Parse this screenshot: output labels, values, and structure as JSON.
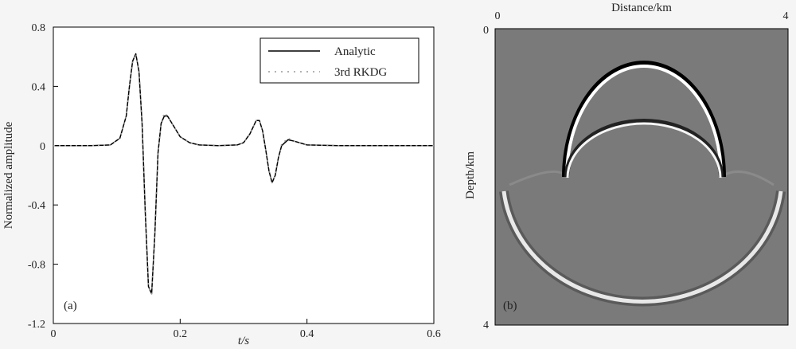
{
  "chart_data": [
    {
      "panel": "(a)",
      "type": "line",
      "xlabel": "t/s",
      "ylabel": "Normalized amplitude",
      "xlim": [
        0,
        0.6
      ],
      "ylim": [
        -1.2,
        0.8
      ],
      "xticks": [
        0,
        0.2,
        0.4,
        0.6
      ],
      "xtick_labels": [
        "0",
        "0.2",
        "0.4",
        "0.6"
      ],
      "yticks": [
        0.8,
        0.4,
        0,
        -0.4,
        -0.8,
        -1.2
      ],
      "ytick_labels": [
        "0.8",
        "0.4",
        "0",
        "-0.4",
        "-0.8",
        "-1.2"
      ],
      "legend": "top-right",
      "grid": false,
      "x": [
        0,
        0.06,
        0.09,
        0.105,
        0.115,
        0.12,
        0.125,
        0.13,
        0.135,
        0.14,
        0.145,
        0.15,
        0.155,
        0.16,
        0.165,
        0.17,
        0.175,
        0.18,
        0.19,
        0.2,
        0.215,
        0.23,
        0.26,
        0.29,
        0.3,
        0.31,
        0.32,
        0.325,
        0.33,
        0.335,
        0.34,
        0.345,
        0.35,
        0.355,
        0.36,
        0.37,
        0.38,
        0.4,
        0.45,
        0.6
      ],
      "series": [
        {
          "name": "Analytic",
          "color": "#000000",
          "style": "solid",
          "values": [
            0,
            0,
            0.005,
            0.05,
            0.2,
            0.4,
            0.57,
            0.62,
            0.5,
            0.15,
            -0.45,
            -0.95,
            -1.0,
            -0.6,
            -0.05,
            0.15,
            0.2,
            0.2,
            0.13,
            0.06,
            0.02,
            0.005,
            0,
            0.005,
            0.02,
            0.08,
            0.17,
            0.17,
            0.1,
            -0.03,
            -0.17,
            -0.25,
            -0.2,
            -0.08,
            0,
            0.04,
            0.03,
            0.005,
            0,
            0
          ]
        },
        {
          "name": "3rd RKDG",
          "color": "#999999",
          "style": "dotted",
          "values": [
            0,
            0,
            0.005,
            0.05,
            0.2,
            0.4,
            0.57,
            0.62,
            0.5,
            0.15,
            -0.45,
            -0.95,
            -1.0,
            -0.6,
            -0.05,
            0.15,
            0.22,
            0.2,
            0.13,
            0.06,
            0.02,
            0.005,
            0,
            0.005,
            0.02,
            0.08,
            0.17,
            0.17,
            0.1,
            -0.03,
            -0.17,
            -0.25,
            -0.2,
            -0.08,
            0.01,
            0.05,
            0.03,
            0.005,
            0,
            0
          ]
        }
      ]
    },
    {
      "panel": "(b)",
      "type": "heatmap",
      "xlabel": "Distance/km",
      "ylabel": "Depth/km",
      "xlim": [
        0,
        4
      ],
      "ylim": [
        0,
        4
      ],
      "x_axis_position": "top",
      "y_inverted": true,
      "xtick_labels": [
        "0",
        "4"
      ],
      "ytick_labels": [
        "0",
        "4"
      ],
      "background_color": "#7a7a7a"
    }
  ]
}
